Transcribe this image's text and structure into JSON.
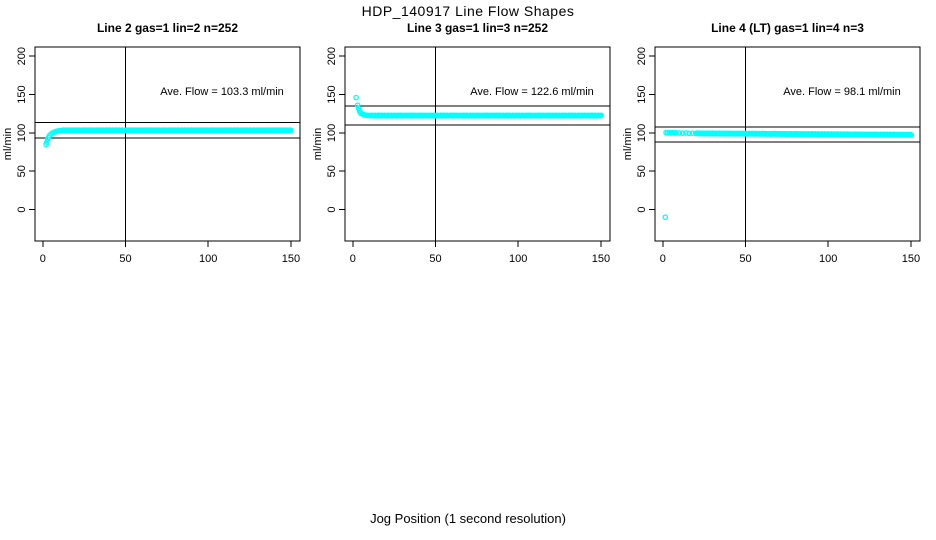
{
  "figure": {
    "title": "HDP_140917  Line Flow Shapes",
    "x_axis_label": "Jog Position (1 second resolution)"
  },
  "colors": {
    "data_points": "#00FFFF",
    "axis": "#000000",
    "background": "#FFFFFF"
  },
  "chart_data": [
    {
      "type": "scatter",
      "title": "Line 2 gas=1 lin=2 n=252",
      "annotation": "Ave. Flow =  103.3  ml/min",
      "ave_flow_ml_min": 103.3,
      "ylabel": "ml/min",
      "x_ticks": [
        0,
        50,
        100,
        150
      ],
      "y_ticks": [
        0,
        50,
        100,
        150,
        200
      ],
      "xlim": [
        -4.7,
        155.5
      ],
      "ylim": [
        -41,
        212
      ],
      "vline_x": 50,
      "ref_lines": [
        113.6,
        93.0
      ],
      "points_start": [
        [
          2,
          85
        ],
        [
          2.5,
          88
        ],
        [
          3,
          91.5
        ],
        [
          3.5,
          94
        ],
        [
          4,
          96.2
        ],
        [
          5,
          98.5
        ],
        [
          6,
          100
        ],
        [
          7,
          101
        ],
        [
          8,
          101.8
        ],
        [
          9,
          102.4
        ],
        [
          10,
          102.7
        ],
        [
          11,
          103
        ]
      ],
      "flat_band": {
        "x_start": 12,
        "x_end": 150,
        "y_start": 103.3,
        "y_end": 103.3
      },
      "outliers": []
    },
    {
      "type": "scatter",
      "title": "Line 3 gas=1 lin=3 n=252",
      "annotation": "Ave. Flow =  122.6  ml/min",
      "ave_flow_ml_min": 122.6,
      "ylabel": "ml/min",
      "x_ticks": [
        0,
        50,
        100,
        150
      ],
      "y_ticks": [
        0,
        50,
        100,
        150,
        200
      ],
      "xlim": [
        -4.7,
        155.5
      ],
      "ylim": [
        -41,
        212
      ],
      "vline_x": 50,
      "ref_lines": [
        134.9,
        110.3
      ],
      "points_start": [
        [
          3,
          136
        ],
        [
          3.5,
          132
        ],
        [
          4,
          129
        ],
        [
          4.5,
          127
        ],
        [
          5,
          125.5
        ],
        [
          6,
          124.3
        ],
        [
          7,
          123.6
        ],
        [
          8,
          123.1
        ],
        [
          9,
          122.9
        ],
        [
          10,
          122.7
        ]
      ],
      "flat_band": {
        "x_start": 11,
        "x_end": 150,
        "y_start": 122.6,
        "y_end": 122.6
      },
      "outliers": [
        [
          2,
          146
        ]
      ]
    },
    {
      "type": "scatter",
      "title": "Line 4 (LT) gas=1 lin=4 n=3",
      "annotation": "Ave. Flow =  98.1  ml/min",
      "ave_flow_ml_min": 98.1,
      "ylabel": "ml/min",
      "x_ticks": [
        0,
        50,
        100,
        150
      ],
      "y_ticks": [
        0,
        50,
        100,
        150,
        200
      ],
      "xlim": [
        -4.7,
        155.5
      ],
      "ylim": [
        -41,
        212
      ],
      "vline_x": 50,
      "ref_lines": [
        107.9,
        88.3
      ],
      "points_start": [
        [
          2,
          100.4
        ],
        [
          3,
          100.1
        ],
        [
          4,
          100.3
        ],
        [
          5,
          99.9
        ],
        [
          6,
          100.2
        ],
        [
          7,
          99.8
        ],
        [
          8,
          100
        ],
        [
          10,
          99.9
        ],
        [
          12,
          99.6
        ],
        [
          14,
          99.8
        ],
        [
          16,
          99.4
        ],
        [
          18,
          99.6
        ]
      ],
      "flat_band": {
        "x_start": 20,
        "x_end": 150,
        "y_start": 99.4,
        "y_end": 97.5
      },
      "outliers": [
        [
          1.5,
          -10
        ]
      ]
    }
  ]
}
